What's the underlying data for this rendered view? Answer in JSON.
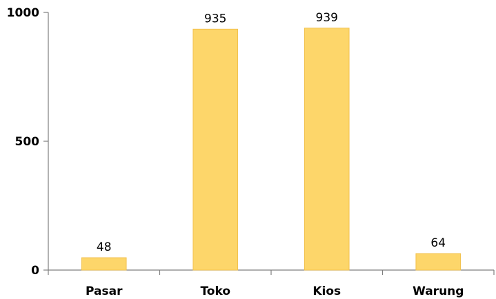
{
  "chart_data": {
    "type": "bar",
    "categories": [
      "Pasar",
      "Toko",
      "Kios",
      "Warung"
    ],
    "values": [
      48,
      935,
      939,
      64
    ],
    "data_labels": [
      "48",
      "935",
      "939",
      "64"
    ],
    "title": "",
    "xlabel": "",
    "ylabel": "",
    "ylim": [
      0,
      1000
    ],
    "y_ticks": [
      0,
      500,
      1000
    ],
    "y_tick_labels": [
      "0",
      "500",
      "1000"
    ],
    "grid": false,
    "legend": "none",
    "colors": {
      "bar_fill": "#FDD66A",
      "bar_edge": "#F2C14E",
      "axis": "#7F7F7F"
    }
  }
}
